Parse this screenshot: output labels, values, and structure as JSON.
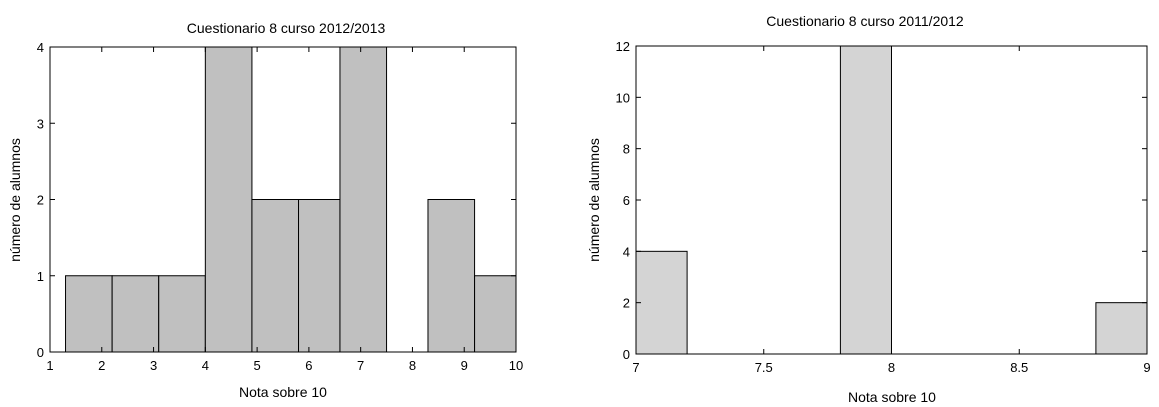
{
  "chart_data": [
    {
      "type": "bar",
      "title": "Cuestionario 8 curso 2012/2013",
      "xlabel": "Nota sobre 10",
      "ylabel": "número de alumnos",
      "xlim": [
        1,
        10
      ],
      "ylim": [
        0,
        4
      ],
      "xticks": [
        "1",
        "2",
        "3",
        "4",
        "5",
        "6",
        "7",
        "8",
        "9",
        "10"
      ],
      "yticks": [
        "0",
        "1",
        "2",
        "3",
        "4"
      ],
      "grid": false,
      "bar_color": "#c0c0c0",
      "bars": [
        {
          "x0": 1.3,
          "x1": 2.2,
          "value": 1
        },
        {
          "x0": 2.2,
          "x1": 3.1,
          "value": 1
        },
        {
          "x0": 3.1,
          "x1": 4.0,
          "value": 1
        },
        {
          "x0": 4.0,
          "x1": 4.9,
          "value": 4
        },
        {
          "x0": 4.9,
          "x1": 5.8,
          "value": 2
        },
        {
          "x0": 5.8,
          "x1": 6.6,
          "value": 2
        },
        {
          "x0": 6.6,
          "x1": 7.5,
          "value": 4
        },
        {
          "x0": 7.5,
          "x1": 8.3,
          "value": 0
        },
        {
          "x0": 8.3,
          "x1": 9.2,
          "value": 2
        },
        {
          "x0": 9.2,
          "x1": 10.0,
          "value": 1
        }
      ]
    },
    {
      "type": "bar",
      "title": "Cuestionario 8 curso 2011/2012",
      "xlabel": "Nota sobre 10",
      "ylabel": "número de alumnos",
      "xlim": [
        7,
        9
      ],
      "ylim": [
        0,
        12
      ],
      "xticks": [
        "7",
        "7.5",
        "8",
        "8.5",
        "9"
      ],
      "yticks": [
        "0",
        "2",
        "4",
        "6",
        "8",
        "10",
        "12"
      ],
      "grid": false,
      "bar_color": "#d4d4d4",
      "bars": [
        {
          "x0": 7.0,
          "x1": 7.2,
          "value": 4
        },
        {
          "x0": 7.8,
          "x1": 8.0,
          "value": 12
        },
        {
          "x0": 8.8,
          "x1": 9.0,
          "value": 2
        }
      ]
    }
  ]
}
